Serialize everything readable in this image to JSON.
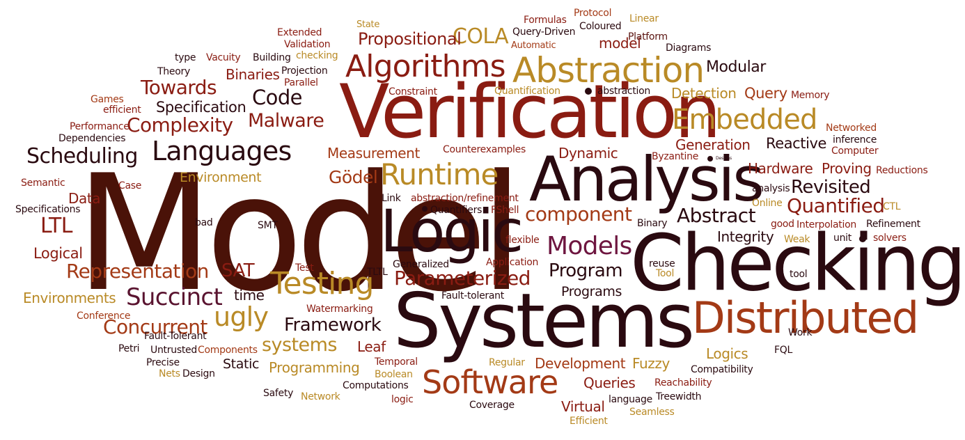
{
  "palette": {
    "dark": "#2a0a10",
    "maroon": "#5a1410",
    "red": "#8a1c12",
    "brick": "#a33a16",
    "gold": "#b98a26",
    "plum": "#6e1640"
  },
  "words": [
    {
      "text": "Model"
    },
    {
      "text": "Checking"
    },
    {
      "text": "Systems"
    },
    {
      "text": "Verification"
    },
    {
      "text": "Analysis"
    },
    {
      "text": "Logic"
    },
    {
      "text": "Distributed"
    },
    {
      "text": "Abstraction"
    },
    {
      "text": "Algorithms"
    },
    {
      "text": "Software"
    },
    {
      "text": "Testing"
    },
    {
      "text": "Runtime"
    },
    {
      "text": "Languages"
    },
    {
      "text": "Embedded"
    },
    {
      "text": "Models"
    },
    {
      "text": "ugly"
    },
    {
      "text": "Succinct"
    },
    {
      "text": "COLA"
    },
    {
      "text": "Representation"
    },
    {
      "text": "Concurrent"
    },
    {
      "text": "Framework"
    },
    {
      "text": "Scheduling"
    },
    {
      "text": "Complexity"
    },
    {
      "text": "Towards"
    },
    {
      "text": "Malware"
    },
    {
      "text": "Code"
    },
    {
      "text": "Parameterized"
    },
    {
      "text": "Quantified"
    },
    {
      "text": "Abstract"
    },
    {
      "text": "component"
    },
    {
      "text": "systems"
    },
    {
      "text": "Program"
    },
    {
      "text": "Revisited"
    },
    {
      "text": "LTL"
    },
    {
      "text": "SAT"
    },
    {
      "text": "Gödel"
    },
    {
      "text": "Propositional"
    },
    {
      "text": "Modular"
    },
    {
      "text": "Specification"
    },
    {
      "text": "Binaries"
    },
    {
      "text": "Detection"
    },
    {
      "text": "Query"
    },
    {
      "text": "Generation"
    },
    {
      "text": "Reactive"
    },
    {
      "text": "Hardware"
    },
    {
      "text": "Proving"
    },
    {
      "text": "Dynamic"
    },
    {
      "text": "Measurement"
    },
    {
      "text": "Environment"
    },
    {
      "text": "Data"
    },
    {
      "text": "Logical"
    },
    {
      "text": "Environments"
    },
    {
      "text": "Programming"
    },
    {
      "text": "Static"
    },
    {
      "text": "Leaf"
    },
    {
      "text": "Development"
    },
    {
      "text": "Fuzzy"
    },
    {
      "text": "Queries"
    },
    {
      "text": "Virtual"
    },
    {
      "text": "Logics"
    },
    {
      "text": "Integrity"
    },
    {
      "text": "Programs"
    },
    {
      "text": "time"
    },
    {
      "text": "model"
    },
    {
      "text": "Formulas"
    },
    {
      "text": "Protocol"
    },
    {
      "text": "Linear"
    },
    {
      "text": "State"
    },
    {
      "text": "Query-Driven"
    },
    {
      "text": "Coloured"
    },
    {
      "text": "Automatic"
    },
    {
      "text": "Platform"
    },
    {
      "text": "Diagrams"
    },
    {
      "text": "Extended"
    },
    {
      "text": "Validation"
    },
    {
      "text": "checking"
    },
    {
      "text": "Building"
    },
    {
      "text": "type"
    },
    {
      "text": "Vacuity"
    },
    {
      "text": "Theory"
    },
    {
      "text": "Projection"
    },
    {
      "text": "Parallel"
    },
    {
      "text": "Constraint"
    },
    {
      "text": "Quantification"
    },
    {
      "text": "abstraction"
    },
    {
      "text": "Memory"
    },
    {
      "text": "Games"
    },
    {
      "text": "efficient"
    },
    {
      "text": "Performance"
    },
    {
      "text": "Dependencies"
    },
    {
      "text": "Networked"
    },
    {
      "text": "inference"
    },
    {
      "text": "Computer"
    },
    {
      "text": "Counterexamples"
    },
    {
      "text": "Byzantine"
    },
    {
      "text": "Designs"
    },
    {
      "text": "Reductions"
    },
    {
      "text": "Semantic"
    },
    {
      "text": "Case"
    },
    {
      "text": "Specifications"
    },
    {
      "text": "Link"
    },
    {
      "text": "abstraction/refinement"
    },
    {
      "text": "Quantifiers"
    },
    {
      "text": "FShell"
    },
    {
      "text": "analysis"
    },
    {
      "text": "Online"
    },
    {
      "text": "CTL"
    },
    {
      "text": "bad"
    },
    {
      "text": "SMT"
    },
    {
      "text": "Binary"
    },
    {
      "text": "good"
    },
    {
      "text": "Interpolation"
    },
    {
      "text": "Refinement"
    },
    {
      "text": "flexible"
    },
    {
      "text": "Weak"
    },
    {
      "text": "unit"
    },
    {
      "text": "solvers"
    },
    {
      "text": "Test"
    },
    {
      "text": "Generalized"
    },
    {
      "text": "Application"
    },
    {
      "text": "reuse"
    },
    {
      "text": "Tool"
    },
    {
      "text": "TLTL"
    },
    {
      "text": "tool"
    },
    {
      "text": "Watermarking"
    },
    {
      "text": "Fault-tolerant"
    },
    {
      "text": "Conference"
    },
    {
      "text": "Fault-Tolerant"
    },
    {
      "text": "Petri"
    },
    {
      "text": "Untrusted"
    },
    {
      "text": "Components"
    },
    {
      "text": "Work"
    },
    {
      "text": "FQL"
    },
    {
      "text": "Precise"
    },
    {
      "text": "Temporal"
    },
    {
      "text": "Regular"
    },
    {
      "text": "Compatibility"
    },
    {
      "text": "Nets"
    },
    {
      "text": "Design"
    },
    {
      "text": "Boolean"
    },
    {
      "text": "Computations"
    },
    {
      "text": "Reachability"
    },
    {
      "text": "Safety"
    },
    {
      "text": "Network"
    },
    {
      "text": "logic"
    },
    {
      "text": "Coverage"
    },
    {
      "text": "language"
    },
    {
      "text": "Treewidth"
    },
    {
      "text": "Seamless"
    },
    {
      "text": "Efficient"
    }
  ]
}
